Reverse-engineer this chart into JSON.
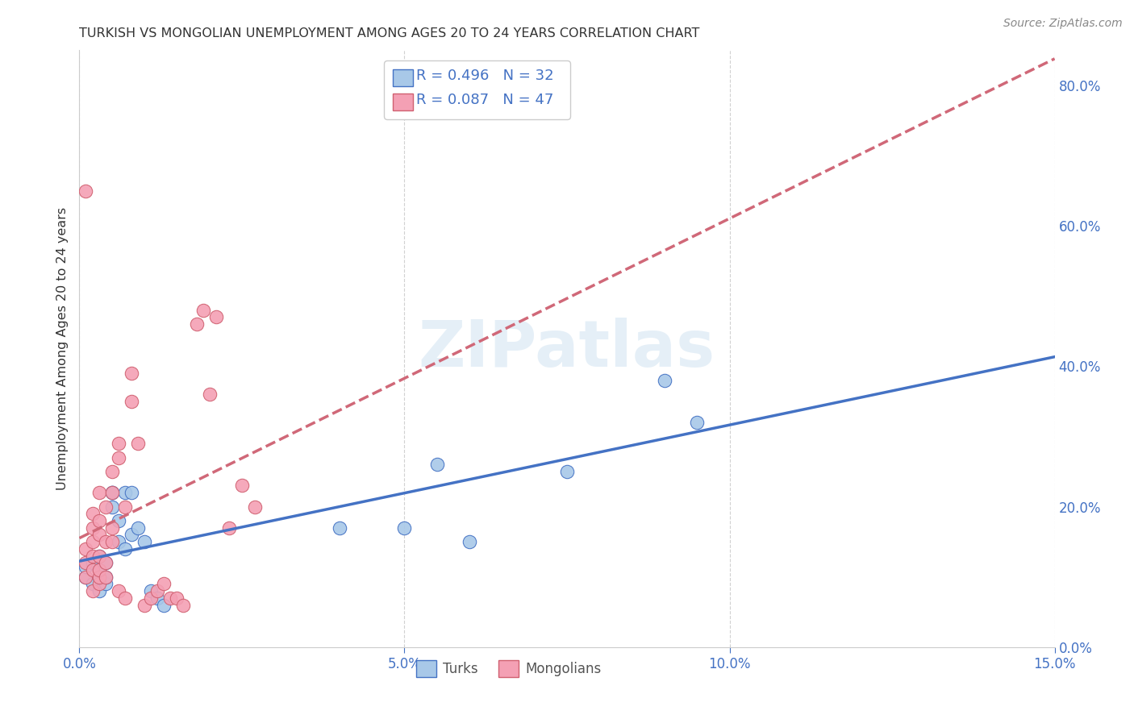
{
  "title": "TURKISH VS MONGOLIAN UNEMPLOYMENT AMONG AGES 20 TO 24 YEARS CORRELATION CHART",
  "source": "Source: ZipAtlas.com",
  "ylabel": "Unemployment Among Ages 20 to 24 years",
  "xlim": [
    0.0,
    0.15
  ],
  "ylim": [
    0.0,
    0.85
  ],
  "xticks": [
    0.0,
    0.05,
    0.1,
    0.15
  ],
  "yticks_right": [
    0.0,
    0.2,
    0.4,
    0.6,
    0.8
  ],
  "turks_x": [
    0.001,
    0.001,
    0.002,
    0.002,
    0.003,
    0.003,
    0.003,
    0.003,
    0.004,
    0.004,
    0.004,
    0.005,
    0.005,
    0.005,
    0.006,
    0.006,
    0.007,
    0.007,
    0.008,
    0.008,
    0.009,
    0.01,
    0.011,
    0.012,
    0.013,
    0.04,
    0.05,
    0.055,
    0.06,
    0.075,
    0.09,
    0.095
  ],
  "turks_y": [
    0.1,
    0.115,
    0.09,
    0.12,
    0.1,
    0.11,
    0.08,
    0.13,
    0.09,
    0.12,
    0.1,
    0.22,
    0.22,
    0.2,
    0.15,
    0.18,
    0.22,
    0.14,
    0.16,
    0.22,
    0.17,
    0.15,
    0.08,
    0.07,
    0.06,
    0.17,
    0.17,
    0.26,
    0.15,
    0.25,
    0.38,
    0.32
  ],
  "mongolians_x": [
    0.001,
    0.001,
    0.001,
    0.001,
    0.002,
    0.002,
    0.002,
    0.002,
    0.002,
    0.002,
    0.003,
    0.003,
    0.003,
    0.003,
    0.003,
    0.003,
    0.003,
    0.004,
    0.004,
    0.004,
    0.004,
    0.005,
    0.005,
    0.005,
    0.005,
    0.006,
    0.006,
    0.006,
    0.007,
    0.007,
    0.008,
    0.008,
    0.009,
    0.01,
    0.011,
    0.012,
    0.013,
    0.014,
    0.015,
    0.016,
    0.018,
    0.019,
    0.02,
    0.021,
    0.023,
    0.025,
    0.027
  ],
  "mongolians_y": [
    0.1,
    0.12,
    0.14,
    0.65,
    0.08,
    0.11,
    0.13,
    0.15,
    0.17,
    0.19,
    0.09,
    0.1,
    0.11,
    0.13,
    0.16,
    0.18,
    0.22,
    0.1,
    0.12,
    0.15,
    0.2,
    0.15,
    0.17,
    0.22,
    0.25,
    0.27,
    0.29,
    0.08,
    0.2,
    0.07,
    0.35,
    0.39,
    0.29,
    0.06,
    0.07,
    0.08,
    0.09,
    0.07,
    0.07,
    0.06,
    0.46,
    0.48,
    0.36,
    0.47,
    0.17,
    0.23,
    0.2
  ],
  "turks_face_color": "#a8c8e8",
  "turks_edge_color": "#4472c4",
  "mongolians_face_color": "#f4a0b4",
  "mongolians_edge_color": "#d06070",
  "turks_line_color": "#4472c4",
  "mongolians_line_color": "#d06878",
  "legend_text_color": "#4472c4",
  "turks_label": "Turks",
  "mongolians_label": "Mongolians",
  "title_color": "#333333",
  "axis_color": "#4472c4",
  "watermark_color": "#cce0f0",
  "legend_R_turks": "R = 0.496",
  "legend_N_turks": "N = 32",
  "legend_R_mongolians": "R = 0.087",
  "legend_N_mongolians": "N = 47"
}
